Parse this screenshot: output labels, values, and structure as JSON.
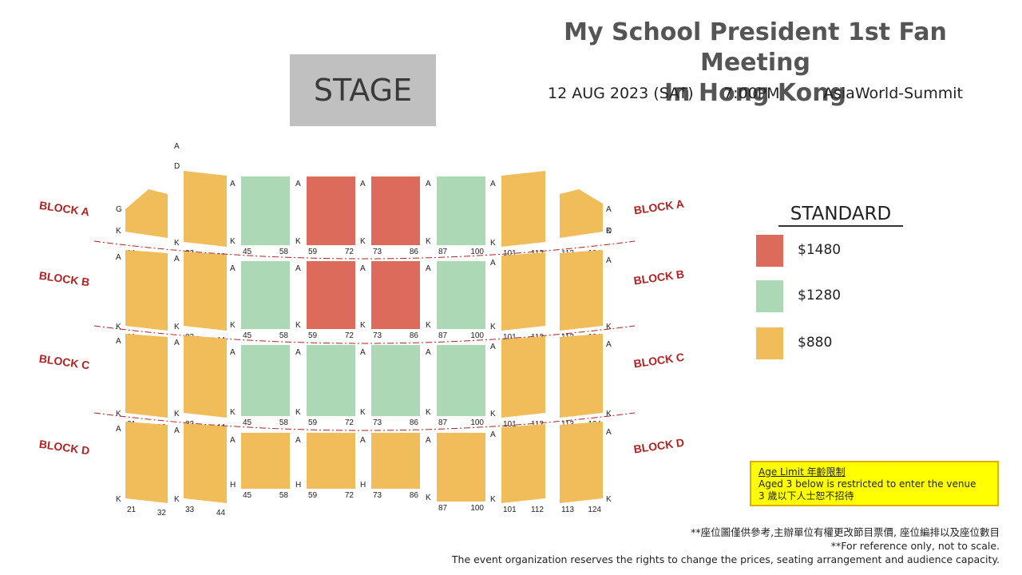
{
  "stage": {
    "label": "STAGE"
  },
  "title": {
    "line1": "My School President 1st Fan Meeting",
    "line2": "In Hong Kong"
  },
  "event": {
    "date": "12 AUG 2023 (SAT)",
    "time": "7:00PM",
    "venue": "AsiaWorld-Summit"
  },
  "legend": {
    "title": "STANDARD",
    "items": [
      {
        "price": "$1480",
        "color": "#dd6b5c"
      },
      {
        "price": "$1280",
        "color": "#add8b6"
      },
      {
        "price": "$880",
        "color": "#f0bd5a"
      }
    ]
  },
  "age_limit": {
    "title": "Age Limit 年齡限制",
    "en": "Aged 3 below is restricted to enter the venue",
    "zh": "3 歲以下人士恕不招待"
  },
  "notes": [
    "**座位圖僅供參考,主辦單位有權更改節目票價, 座位編排以及座位數目",
    "**For reference only, not to scale.",
    "The event organization reserves the rights to change the prices, seating arrangement and audience capacity."
  ],
  "blocks": [
    {
      "name": "BLOCK A",
      "sections": [
        {
          "price": "$880",
          "rows": [
            "G",
            "K"
          ],
          "seats": [
            "21",
            "32"
          ]
        },
        {
          "price": "$880",
          "rows": [
            "A",
            "D",
            "K"
          ],
          "seats": [
            "33",
            "44"
          ]
        },
        {
          "price": "$1280",
          "rows": [
            "A",
            "K"
          ],
          "seats": [
            "45",
            "58"
          ]
        },
        {
          "price": "$1480",
          "rows": [
            "A",
            "K"
          ],
          "seats": [
            "59",
            "72"
          ]
        },
        {
          "price": "$1480",
          "rows": [
            "A",
            "K"
          ],
          "seats": [
            "73",
            "86"
          ]
        },
        {
          "price": "$1280",
          "rows": [
            "A",
            "K"
          ],
          "seats": [
            "87",
            "100"
          ]
        },
        {
          "price": "$880",
          "rows": [
            "A",
            "K"
          ],
          "seats": [
            "101",
            "112"
          ]
        },
        {
          "price": "$880",
          "rows": [
            "A",
            "D",
            "K"
          ],
          "seats": [
            "113",
            "124"
          ]
        },
        {
          "price": "$880",
          "rows": [
            "G",
            "K"
          ],
          "seats": [
            "",
            ""
          ]
        }
      ]
    },
    {
      "name": "BLOCK B",
      "sections": [
        {
          "price": "$880",
          "rows": [
            "A",
            "K"
          ],
          "seats": [
            "21",
            "32"
          ]
        },
        {
          "price": "$880",
          "rows": [
            "A",
            "K"
          ],
          "seats": [
            "33",
            "44"
          ]
        },
        {
          "price": "$1280",
          "rows": [
            "A",
            "K"
          ],
          "seats": [
            "45",
            "58"
          ]
        },
        {
          "price": "$1480",
          "rows": [
            "A",
            "K"
          ],
          "seats": [
            "59",
            "72"
          ]
        },
        {
          "price": "$1480",
          "rows": [
            "A",
            "K"
          ],
          "seats": [
            "73",
            "86"
          ]
        },
        {
          "price": "$1280",
          "rows": [
            "A",
            "K"
          ],
          "seats": [
            "87",
            "100"
          ]
        },
        {
          "price": "$880",
          "rows": [
            "A",
            "K"
          ],
          "seats": [
            "101",
            "112"
          ]
        },
        {
          "price": "$880",
          "rows": [
            "A",
            "K"
          ],
          "seats": [
            "113",
            "124"
          ]
        },
        {
          "price": "$880",
          "rows": [
            "A",
            "K"
          ],
          "seats": [
            "",
            ""
          ]
        }
      ]
    },
    {
      "name": "BLOCK C",
      "sections": [
        {
          "price": "$880",
          "rows": [
            "A",
            "K"
          ],
          "seats": [
            "21",
            "32"
          ]
        },
        {
          "price": "$880",
          "rows": [
            "A",
            "K"
          ],
          "seats": [
            "33",
            "44"
          ]
        },
        {
          "price": "$1280",
          "rows": [
            "A",
            "K"
          ],
          "seats": [
            "45",
            "58"
          ]
        },
        {
          "price": "$1280",
          "rows": [
            "A",
            "K"
          ],
          "seats": [
            "59",
            "72"
          ]
        },
        {
          "price": "$1280",
          "rows": [
            "A",
            "K"
          ],
          "seats": [
            "73",
            "86"
          ]
        },
        {
          "price": "$1280",
          "rows": [
            "A",
            "K"
          ],
          "seats": [
            "87",
            "100"
          ]
        },
        {
          "price": "$880",
          "rows": [
            "A",
            "K"
          ],
          "seats": [
            "101",
            "112"
          ]
        },
        {
          "price": "$880",
          "rows": [
            "A",
            "K"
          ],
          "seats": [
            "113",
            "124"
          ]
        },
        {
          "price": "$880",
          "rows": [
            "A",
            "K"
          ],
          "seats": [
            "",
            ""
          ]
        }
      ]
    },
    {
      "name": "BLOCK D",
      "sections": [
        {
          "price": "$880",
          "rows": [
            "A",
            "K"
          ],
          "seats": [
            "21",
            "32"
          ]
        },
        {
          "price": "$880",
          "rows": [
            "A",
            "K"
          ],
          "seats": [
            "33",
            "44"
          ]
        },
        {
          "price": "$880",
          "rows": [
            "A",
            "H"
          ],
          "seats": [
            "45",
            "58"
          ]
        },
        {
          "price": "$880",
          "rows": [
            "A",
            "H"
          ],
          "seats": [
            "59",
            "72"
          ]
        },
        {
          "price": "$880",
          "rows": [
            "A",
            "H"
          ],
          "seats": [
            "73",
            "86"
          ]
        },
        {
          "price": "$880",
          "rows": [
            "A",
            "K"
          ],
          "seats": [
            "87",
            "100"
          ]
        },
        {
          "price": "$880",
          "rows": [
            "A",
            "K"
          ],
          "seats": [
            "101",
            "112"
          ]
        },
        {
          "price": "$880",
          "rows": [
            "A",
            "K"
          ],
          "seats": [
            "113",
            "124"
          ]
        },
        {
          "price": "$880",
          "rows": [
            "A",
            "K"
          ],
          "seats": [
            "",
            ""
          ]
        }
      ]
    }
  ]
}
